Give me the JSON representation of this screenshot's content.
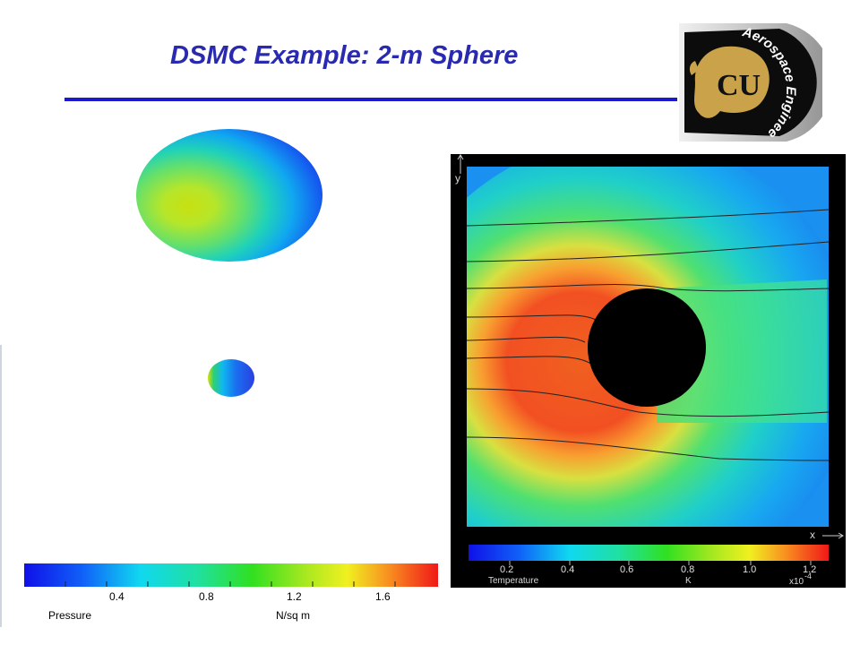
{
  "slide": {
    "title": "DSMC Example: 2-m Sphere",
    "title_color": "#2a2ab0",
    "rule_color": "#1a1acc"
  },
  "logo": {
    "monogram": "CU",
    "arc_text": "Aerospace Engineering",
    "icon": "buffalo-icon"
  },
  "pressure_colorbar": {
    "ticks": [
      "0.4",
      "0.8",
      "1.2",
      "1.6"
    ],
    "quantity_label": "Pressure",
    "unit_label": "N/sq m"
  },
  "temperature_panel": {
    "y_axis_label": "y",
    "x_axis_label": "x",
    "colorbar_ticks": [
      "0.2",
      "0.4",
      "0.6",
      "0.8",
      "1.0",
      "1.2"
    ],
    "quantity_label": "Temperature",
    "unit_label": "K",
    "scale_label": "x10",
    "scale_exponent": "-4"
  }
}
